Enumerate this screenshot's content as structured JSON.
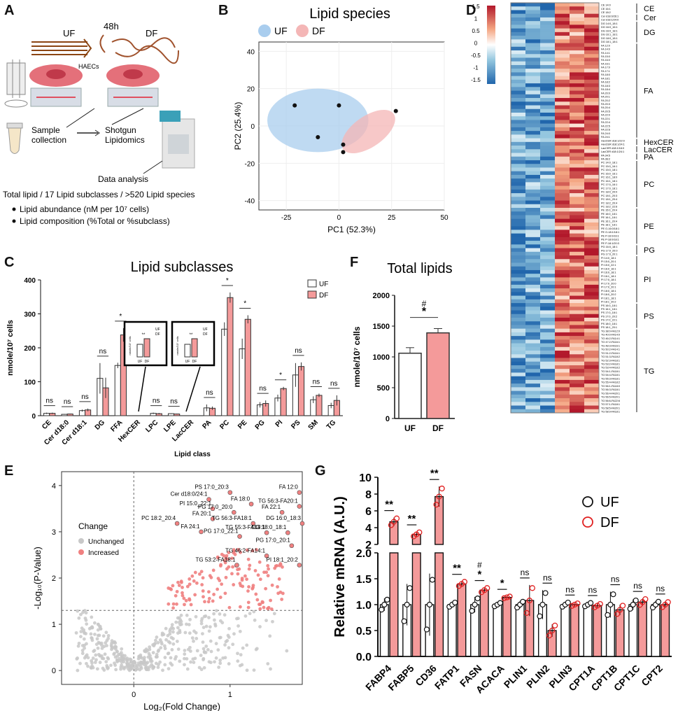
{
  "panel_letters": [
    "A",
    "B",
    "C",
    "D",
    "E",
    "F",
    "G"
  ],
  "panelA": {
    "flow_uf": "UF",
    "flow_48h": "48h",
    "flow_df": "DF",
    "cells_label": "HAECs",
    "sample_label": "Sample collection",
    "shotgun_label": "Shotgun Lipidomics",
    "analysis_label": "Data analysis",
    "summary_line": "Total lipid /  17 Lipid subclasses / >520 Lipid species",
    "bullets": [
      "Lipid abundance (nM per 10⁷ cells)",
      "Lipid composition (%Total or %subclass)"
    ]
  },
  "colors": {
    "uf_fill": "#ffffff",
    "df_fill": "#f49a9a",
    "df_point": "#e02020",
    "uf_ellipse": "#a9cdee",
    "df_ellipse": "#f4b6b6",
    "increased": "#f08080",
    "unchanged": "#c8c8c8",
    "heat_high": "#c0392b",
    "heat_low": "#2166ac"
  },
  "chart_data": [
    {
      "id": "B",
      "type": "scatter",
      "title": "Lipid species",
      "xlabel": "PC1 (52.3%)",
      "ylabel": "PC2 (25.4%)",
      "xlim": [
        -38,
        50
      ],
      "ylim": [
        -45,
        45
      ],
      "xticks": [
        "-25",
        "0",
        "25",
        "50"
      ],
      "yticks": [
        "40",
        "20",
        "0",
        "-20",
        "-40"
      ],
      "legend": [
        "UF",
        "DF"
      ],
      "series": [
        {
          "name": "UF",
          "points": [
            [
              -21,
              11
            ],
            [
              0,
              11
            ],
            [
              -10,
              -6
            ]
          ]
        },
        {
          "name": "DF",
          "points": [
            [
              27,
              8
            ],
            [
              2,
              -10
            ],
            [
              2,
              -14
            ]
          ]
        }
      ]
    },
    {
      "id": "C",
      "type": "bar",
      "title": "Lipid subclasses",
      "ylabel": "nmole/10⁷ cells",
      "xlabel": "Lipid class",
      "ylim": [
        0,
        400
      ],
      "yticks": [
        "400",
        "300",
        "200",
        "100",
        "0"
      ],
      "legend": [
        "UF",
        "DF"
      ],
      "categories": [
        "CE",
        "Cer d18:0",
        "Cer d18:1",
        "DG",
        "FFA",
        "HexCER",
        "LPC",
        "LPE",
        "LacCER",
        "PA",
        "PC",
        "PE",
        "PG",
        "PI",
        "PS",
        "SM",
        "TG"
      ],
      "series": [
        {
          "name": "UF",
          "values": [
            7,
            4,
            15,
            110,
            148,
            0,
            7,
            6,
            0,
            23,
            255,
            197,
            32,
            52,
            120,
            47,
            30
          ]
        },
        {
          "name": "DF",
          "values": [
            7,
            5,
            17,
            82,
            238,
            0,
            6,
            5,
            0,
            22,
            348,
            284,
            36,
            80,
            145,
            60,
            45
          ]
        }
      ],
      "errors": {
        "UF": [
          2,
          1,
          3,
          45,
          8,
          0,
          2,
          1,
          0,
          10,
          20,
          30,
          8,
          10,
          35,
          10,
          8
        ],
        "DF": [
          2,
          1,
          4,
          30,
          20,
          0,
          2,
          1,
          0,
          5,
          15,
          12,
          9,
          5,
          12,
          5,
          15
        ]
      },
      "significance": [
        "ns",
        "ns",
        "ns",
        "ns",
        "*",
        "",
        "ns",
        "ns",
        "",
        "ns",
        "*",
        "*",
        "ns",
        "*",
        "ns",
        "ns",
        "ns"
      ],
      "insets": [
        {
          "ylabel": "nmole/10⁷ cells",
          "sig": "**",
          "legend": [
            "UF",
            "DF"
          ],
          "cats": [
            "UF",
            "DF"
          ]
        },
        {
          "ylabel": "nmole/10⁷ cells",
          "sig": "**",
          "legend": [
            "UF",
            "DF"
          ],
          "cats": [
            "UF",
            "DF"
          ]
        }
      ]
    },
    {
      "id": "F",
      "type": "bar",
      "title": "Total lipids",
      "ylabel": "nmole/10⁷ cells",
      "ylim": [
        0,
        2000
      ],
      "yticks": [
        "2000",
        "1500",
        "1000",
        "500",
        "0"
      ],
      "categories": [
        "UF",
        "DF"
      ],
      "values": [
        1060,
        1390
      ],
      "errors": [
        90,
        70
      ],
      "significance": [
        "#",
        "*"
      ]
    },
    {
      "id": "D",
      "type": "heatmap",
      "scale": [
        "1.5",
        "1",
        "0.5",
        "0",
        "-0.5",
        "-1",
        "-1.5"
      ],
      "groups": [
        "CE",
        "Cer",
        "DG",
        "FA",
        "HexCER",
        "LacCER",
        "PA",
        "PC",
        "PE",
        "PG",
        "PI",
        "PS",
        "TG"
      ],
      "rows": [
        [
          "CE 14:0",
          "CE 16:1",
          "CE 18:2"
        ],
        [
          "Cer d18:0/26:1",
          "Cer d18:1/24:0"
        ],
        [
          "DG 14:0_18:1",
          "DG 16:0_16:1",
          "DG 16:0_18:1",
          "DG 16:1_18:1",
          "DG 18:0_18:1",
          "DG 18:1_18:1"
        ],
        [
          "FA 12:0",
          "FA 14:0",
          "FA 14:1",
          "FA 15:0",
          "FA 16:0",
          "FA 16:1",
          "FA 17:0",
          "FA 17:1",
          "FA 18:0",
          "FA 18:1",
          "FA 18:2",
          "FA 18:3",
          "FA 18:4",
          "FA 20:0",
          "FA 20:1",
          "FA 20:2",
          "FA 20:3",
          "FA 20:4",
          "FA 20:5",
          "FA 22:0",
          "FA 22:1",
          "FA 22:4",
          "FA 22:5",
          "FA 22:6",
          "FA 24:0",
          "FA 24:1"
        ],
        [
          "HexCER d18:1/22:0",
          "HexCER d18:1/24:1"
        ],
        [
          "LacCER d18:1/16:0",
          "LacCER d18:1/24:1"
        ],
        [
          "PA 34:5",
          "PA 36:2"
        ],
        [
          "PC 14:0_18:1",
          "PC 15:0_16:1",
          "PC 15:0_18:1",
          "PC 16:0_16:1",
          "PC 16:1_18:0",
          "PC 16:1_18:1",
          "PC 17:0_16:1",
          "PC 17:0_18:1",
          "PC 18:0_20:0",
          "PC 18:1_20:3",
          "PC 18:1_20:4",
          "PC 18:2_20:4",
          "PC 18:2_22:6"
        ],
        [
          "PE 15:0_20:4",
          "PE 16:0_18:1",
          "PE 16:1_18:1",
          "PE 16:1_20:4",
          "PE 18:1_18:1",
          "PE O-16:0/18:1",
          "PE O-18:1/18:1",
          "PE P-16:0/16:1",
          "PE P-18:0/18:1",
          "PE P-18:1/20:3"
        ],
        [
          "PG 16:0_18:1",
          "PG 17:0_20:0",
          "PG 17:0_20:1"
        ],
        [
          "PI 14:0_18:1",
          "PI 15:0_20:1",
          "PI 15:0_22:1",
          "PI 16:0_16:1",
          "PI 16:0_18:1",
          "PI 16:1_18:1",
          "PI 17:0_18:1",
          "PI 17:0_20:0",
          "PI 17:0_20:1",
          "PI 18:0_18:1",
          "PI 18:0_20:2",
          "PI 18:1_18:1",
          "PI 18:1_20:2"
        ],
        [
          "PS 16:0_18:1",
          "PS 16:1_18:1",
          "PS 17:0_18:1",
          "PS 17:0_20:2",
          "PS 17:0_22:1",
          "PS 18:0_18:1",
          "PS 18:1_20:1"
        ],
        [
          "TG 38:0-FA12:0",
          "TG 40:0-FA14:0",
          "TG 46:2-FA14:1",
          "TG 47:2-FA16:1",
          "TG 48:3-FA16:1",
          "TG 50:2-FA14:1",
          "TG 51:2-FA16:1",
          "TG 51:3-FA18:2",
          "TG 52:3-FA18:1",
          "TG 53:2-FA18:1",
          "TG 53:4-FA18:2",
          "TG 54:1-FA18:1",
          "TG 54:4-FA18:1",
          "TG 55:3-FA18:1",
          "TG 55:4-FA18:2",
          "TG 56:1-FA18:0",
          "TG 56:3-FA18:1",
          "TG 56:4-FA20:1",
          "TG 56:5-FA20:1",
          "TG 56:6-FA22:6",
          "TG 57:1-FA18:1",
          "TG 58:5-FA20:1",
          "TG 58:9-FA18:1"
        ]
      ]
    },
    {
      "id": "E",
      "type": "scatter",
      "xlabel": "Log₂(Fold Change)",
      "ylabel": "-Log₁₀(P-Value)",
      "xlim": [
        -0.75,
        1.75
      ],
      "ylim": [
        -0.3,
        4.3
      ],
      "xticks": [
        "0",
        "1"
      ],
      "yticks": [
        "4",
        "3",
        "2",
        "1",
        "0"
      ],
      "legend_title": "Change",
      "legend": [
        "Unchanged",
        "Increased"
      ],
      "threshold_y": 1.3,
      "labels": [
        {
          "text": "PS 17:0_20:3",
          "x": 1.0,
          "y": 3.85
        },
        {
          "text": "FA 12:0",
          "x": 1.72,
          "y": 3.85
        },
        {
          "text": "Cer d18:0/24:1",
          "x": 0.78,
          "y": 3.7
        },
        {
          "text": "FA 18:0",
          "x": 1.22,
          "y": 3.6
        },
        {
          "text": "TG 56:3-FA20:1",
          "x": 1.72,
          "y": 3.55
        },
        {
          "text": "PI 15:0_22:1",
          "x": 0.82,
          "y": 3.5
        },
        {
          "text": "PG 17:0_20:0",
          "x": 1.04,
          "y": 3.42
        },
        {
          "text": "FA 22:1",
          "x": 1.54,
          "y": 3.42
        },
        {
          "text": "FA 20:1",
          "x": 0.82,
          "y": 3.28
        },
        {
          "text": "PC 18:2_20:4",
          "x": 0.45,
          "y": 3.18
        },
        {
          "text": "TG 56:3-FA18:1",
          "x": 1.24,
          "y": 3.18
        },
        {
          "text": "DG 16:0_18:3",
          "x": 1.75,
          "y": 3.18
        },
        {
          "text": "FA 24:1",
          "x": 0.7,
          "y": 3.0
        },
        {
          "text": "TG 55:3-FA18:1",
          "x": 1.38,
          "y": 2.98
        },
        {
          "text": "PG 17:0_22:1",
          "x": 1.1,
          "y": 2.9
        },
        {
          "text": "DG 18:0_18:1",
          "x": 1.6,
          "y": 2.98
        },
        {
          "text": "PG 17:0_20:1",
          "x": 1.64,
          "y": 2.7
        },
        {
          "text": "TG 46:2-FA14:1",
          "x": 1.38,
          "y": 2.48
        },
        {
          "text": "TG 53:2-FA18:1",
          "x": 1.07,
          "y": 2.28
        },
        {
          "text": "PI 18:1_20:2",
          "x": 1.72,
          "y": 2.28
        }
      ]
    },
    {
      "id": "G",
      "type": "bar",
      "ylabel": "Relative mRNA (A.U.)",
      "broken_axis": true,
      "yticks_top": [
        "10",
        "8",
        "6",
        "4",
        "2"
      ],
      "yticks_bottom": [
        "2.0",
        "1.5",
        "1.0",
        "0.5",
        "0.0"
      ],
      "legend": [
        "UF",
        "DF"
      ],
      "categories": [
        "FABP4",
        "FABP5",
        "CD36",
        "FATP1",
        "FASN",
        "ACACA",
        "PLIN1",
        "PLIN2",
        "PLIN3",
        "CPT1A",
        "CPT1B",
        "CPT1C",
        "CPT2"
      ],
      "series": [
        {
          "name": "UF",
          "values": [
            1.0,
            1.0,
            1.0,
            1.0,
            1.0,
            1.0,
            1.0,
            1.0,
            1.0,
            1.0,
            1.0,
            1.0,
            1.0
          ]
        },
        {
          "name": "DF",
          "values": [
            4.7,
            3.2,
            7.7,
            1.4,
            1.28,
            1.14,
            1.08,
            0.5,
            1.0,
            0.98,
            0.9,
            1.05,
            1.0
          ]
        }
      ],
      "errors": {
        "UF": [
          0.12,
          0.4,
          0.6,
          0.05,
          0.15,
          0.04,
          0.07,
          0.28,
          0.05,
          0.04,
          0.25,
          0.1,
          0.07
        ],
        "DF": [
          0.5,
          0.3,
          1.2,
          0.05,
          0.05,
          0.02,
          0.3,
          0.12,
          0.03,
          0.04,
          0.1,
          0.07,
          0.06
        ]
      },
      "significance": [
        "**",
        "**",
        "**",
        "**",
        "*",
        "*",
        "ns",
        "ns",
        "ns",
        "ns",
        "ns",
        "ns",
        "ns"
      ],
      "sig_extra": {
        "FASN": "#"
      }
    }
  ]
}
